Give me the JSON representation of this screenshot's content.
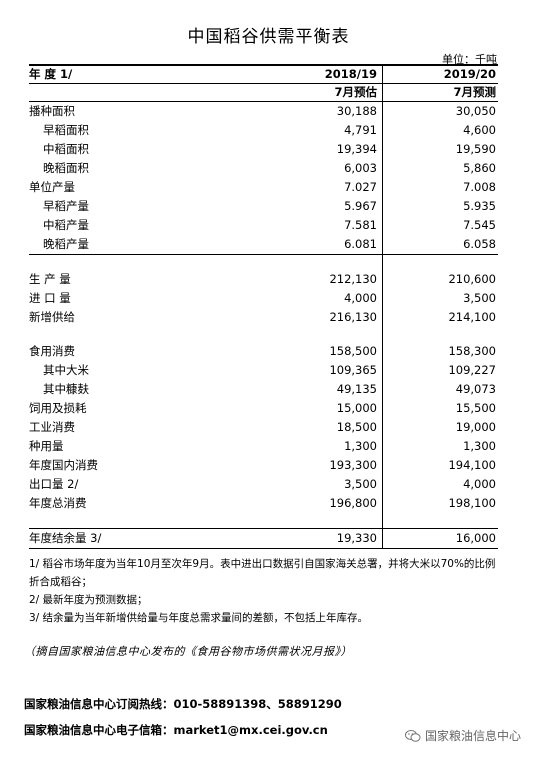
{
  "title": "中国稻谷供需平衡表",
  "unit": "单位：千吨",
  "header": {
    "label": "年 度 1/",
    "col1": "2018/19",
    "col2": "2019/20"
  },
  "subheader": {
    "col1": "7月预估",
    "col2": "7月预测"
  },
  "rows": [
    {
      "label": "播种面积",
      "v1": "30,188",
      "v2": "30,050"
    },
    {
      "label": "早稻面积",
      "v1": "4,791",
      "v2": "4,600"
    },
    {
      "label": "中稻面积",
      "v1": "19,394",
      "v2": "19,590"
    },
    {
      "label": "晚稻面积",
      "v1": "6,003",
      "v2": "5,860"
    },
    {
      "label": "单位产量",
      "v1": "7.027",
      "v2": "7.008"
    },
    {
      "label": "早稻产量",
      "v1": "5.967",
      "v2": "5.935"
    },
    {
      "label": "中稻产量",
      "v1": "7.581",
      "v2": "7.545"
    },
    {
      "label": "晚稻产量",
      "v1": "6.081",
      "v2": "6.058"
    },
    {
      "label": "生 产 量",
      "v1": "212,130",
      "v2": "210,600"
    },
    {
      "label": "进 口 量",
      "v1": "4,000",
      "v2": "3,500"
    },
    {
      "label": "新增供给",
      "v1": "216,130",
      "v2": "214,100"
    },
    {
      "label": "食用消费",
      "v1": "158,500",
      "v2": "158,300"
    },
    {
      "label": "其中大米",
      "v1": "109,365",
      "v2": "109,227"
    },
    {
      "label": "其中糠麸",
      "v1": "49,135",
      "v2": "49,073"
    },
    {
      "label": "饲用及损耗",
      "v1": "15,000",
      "v2": "15,500"
    },
    {
      "label": "工业消费",
      "v1": "18,500",
      "v2": "19,000"
    },
    {
      "label": "种用量",
      "v1": "1,300",
      "v2": "1,300"
    },
    {
      "label": "年度国内消费",
      "v1": "193,300",
      "v2": "194,100"
    },
    {
      "label": "出口量 2/",
      "v1": "3,500",
      "v2": "4,000"
    },
    {
      "label": "年度总消费",
      "v1": "196,800",
      "v2": "198,100"
    },
    {
      "label": "年度结余量 3/",
      "v1": "19,330",
      "v2": "16,000"
    }
  ],
  "notes": [
    "1/ 稻谷市场年度为当年10月至次年9月。表中进出口数据引自国家海关总署，并将大米以70%的比例折合成稻谷；",
    "2/ 最新年度为预测数据；",
    "3/ 结余量为当年新增供给量与年度总需求量间的差额，不包括上年库存。"
  ],
  "source": "（摘自国家粮油信息中心发布的《食用谷物市场供需状况月报》）",
  "contact": {
    "hotline_label": "国家粮油信息中心订阅热线：",
    "hotline": "010-58891398、58891290",
    "email_label": "国家粮油信息中心电子信箱：",
    "email": "market1@mx.cei.gov.cn"
  },
  "watermark": "国家粮油信息中心"
}
